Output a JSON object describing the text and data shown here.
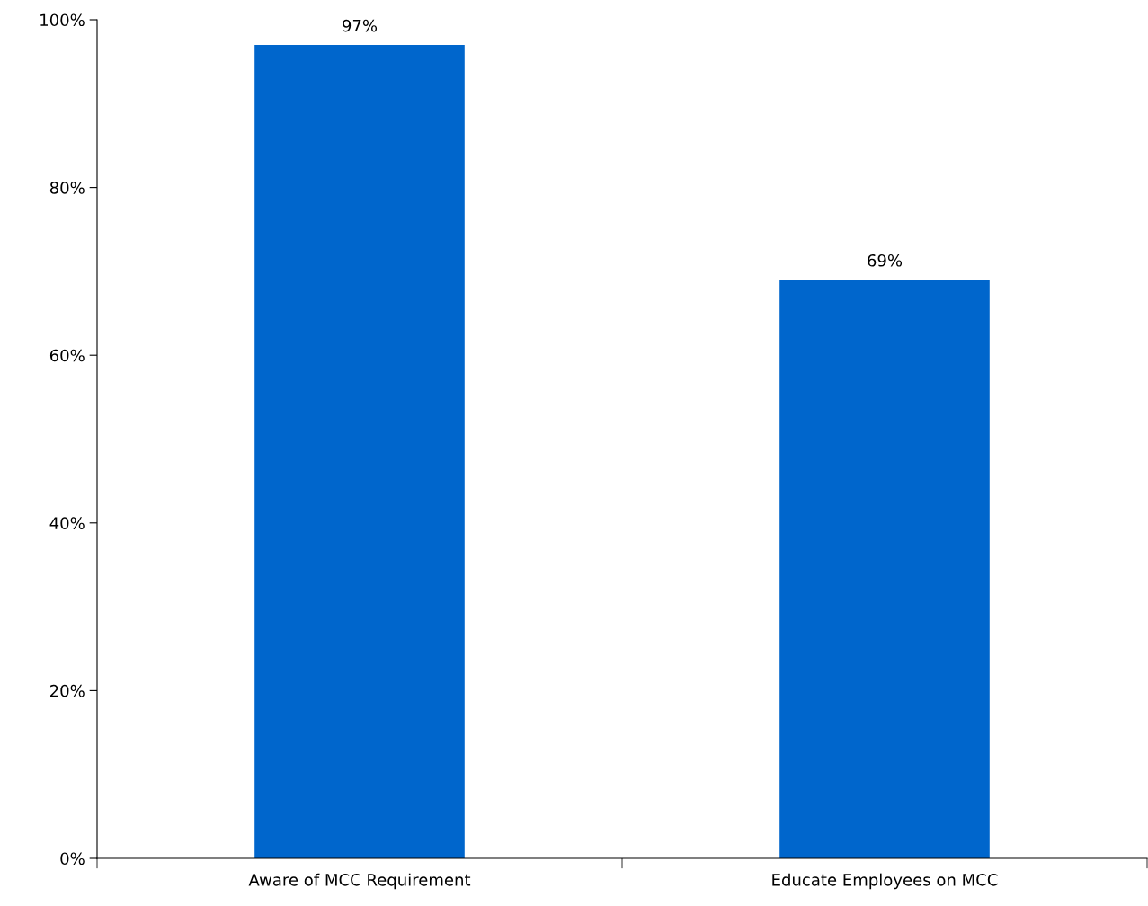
{
  "chart_data": {
    "type": "bar",
    "categories": [
      "Aware of MCC Requirement",
      "Educate Employees on MCC"
    ],
    "values": [
      97,
      69
    ],
    "color": "#0066cc",
    "value_labels": [
      "97%",
      "69%"
    ],
    "ylim": [
      0,
      100
    ],
    "yticks": [
      {
        "value": 0,
        "label": "0%"
      },
      {
        "value": 20,
        "label": "20%"
      },
      {
        "value": 40,
        "label": "40%"
      },
      {
        "value": 60,
        "label": "60%"
      },
      {
        "value": 80,
        "label": "80%"
      },
      {
        "value": 100,
        "label": "100%"
      }
    ],
    "grid": false,
    "legend": false
  }
}
